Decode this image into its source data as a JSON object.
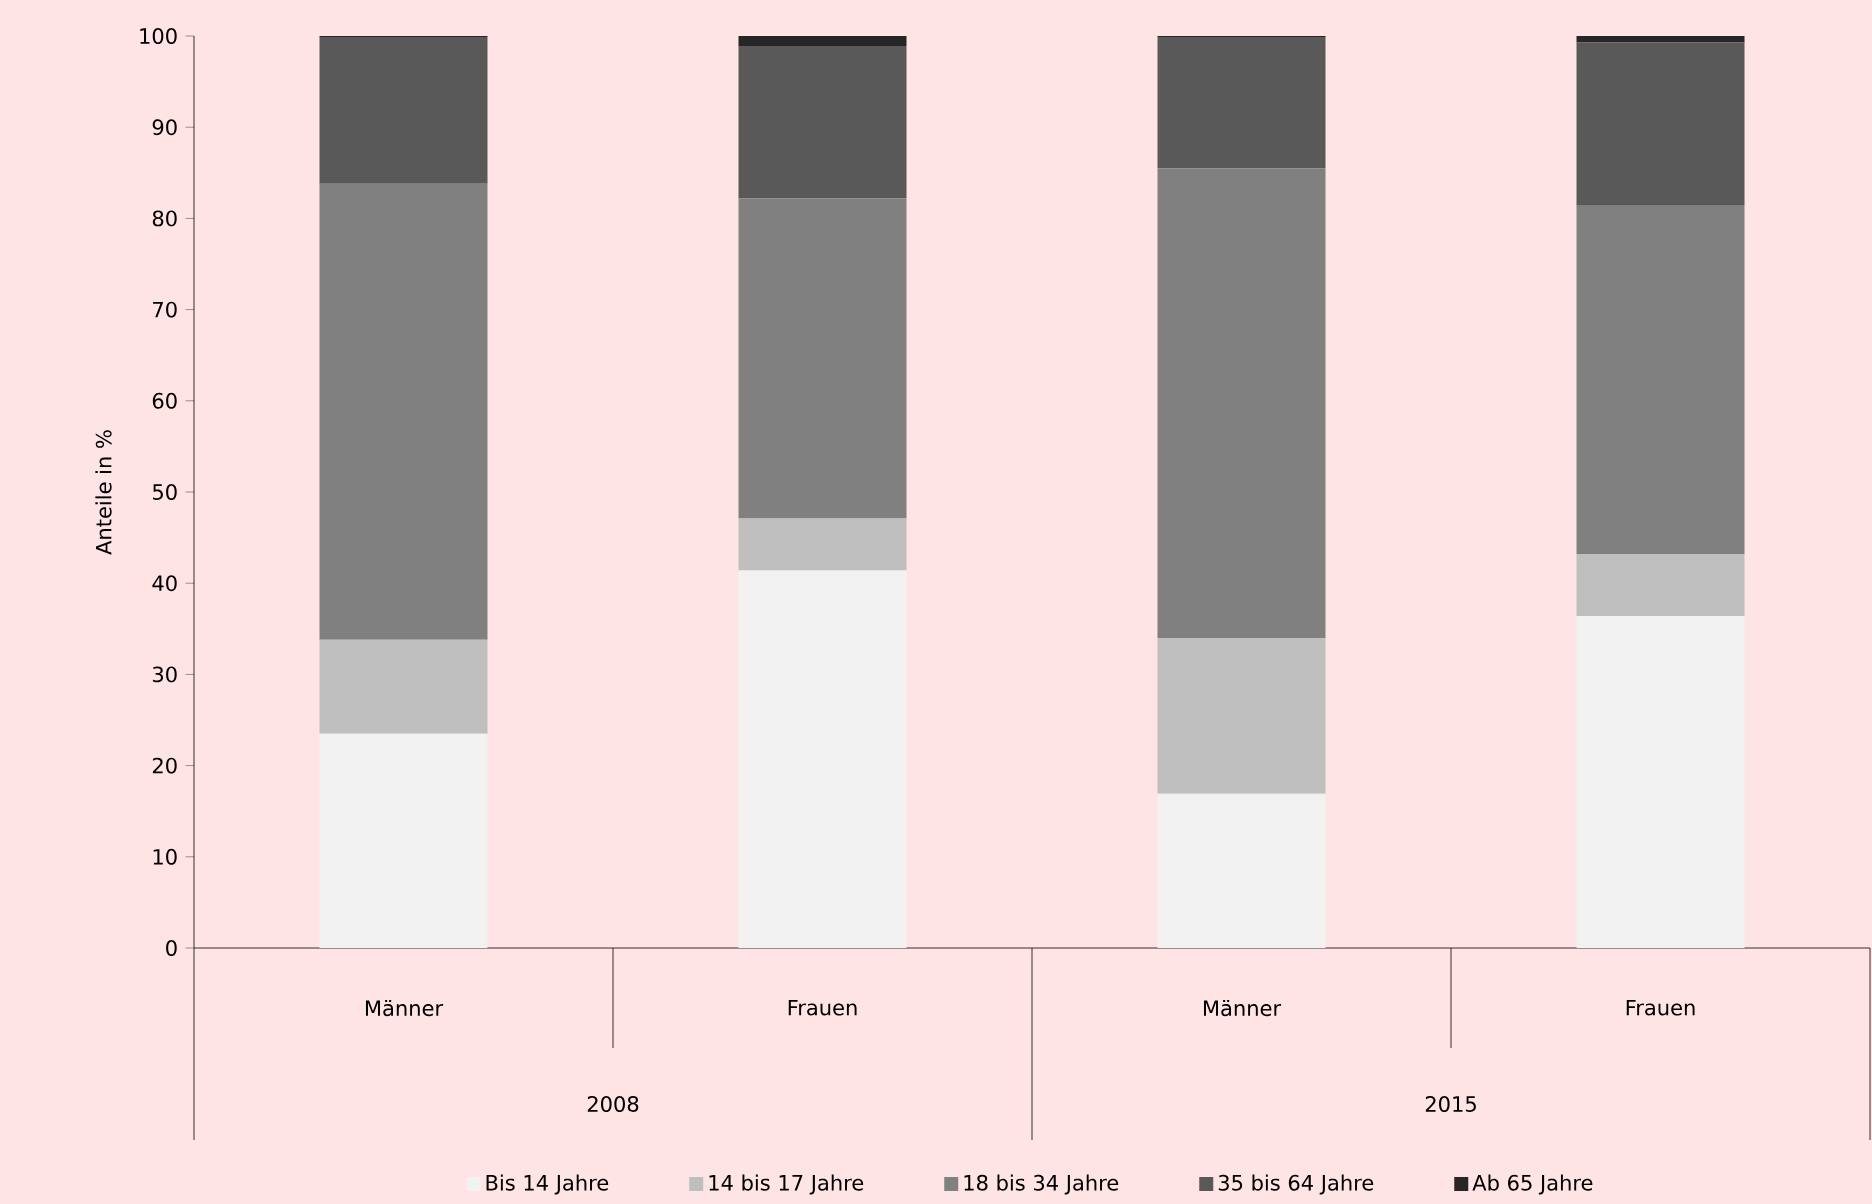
{
  "chart_data": {
    "type": "bar",
    "stacked": true,
    "ylabel": "Anteile in %",
    "categories": [
      "Männer",
      "Frauen",
      "Männer",
      "Frauen"
    ],
    "annotations": [
      "2008",
      "2015"
    ],
    "series": [
      {
        "name": "Bis 14 Jahre",
        "color": "#f2f2f2",
        "values": [
          23.5,
          41.4,
          16.9,
          36.4
        ]
      },
      {
        "name": "14 bis 17 Jahre",
        "color": "#bfbfbf",
        "values": [
          10.3,
          5.7,
          17.1,
          6.8
        ]
      },
      {
        "name": "18 bis 34 Jahre",
        "color": "#808080",
        "values": [
          50.0,
          35.1,
          51.5,
          38.2
        ]
      },
      {
        "name": "35 bis 64 Jahre",
        "color": "#595959",
        "values": [
          16.1,
          16.7,
          14.4,
          17.9
        ]
      },
      {
        "name": "Ab 65 Jahre",
        "color": "#262626",
        "values": [
          0.1,
          1.1,
          0.1,
          0.7
        ]
      }
    ],
    "ylim": [
      0,
      100
    ],
    "yticks": [
      0,
      10,
      20,
      30,
      40,
      50,
      60,
      70,
      80,
      90,
      100
    ],
    "grid": false,
    "legend": "bottom"
  }
}
